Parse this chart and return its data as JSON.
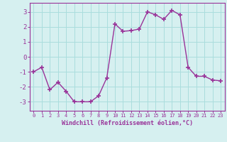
{
  "x": [
    0,
    1,
    2,
    3,
    4,
    5,
    6,
    7,
    8,
    9,
    10,
    11,
    12,
    13,
    14,
    15,
    16,
    17,
    18,
    19,
    20,
    21,
    22,
    23
  ],
  "y": [
    -1.0,
    -0.7,
    -2.2,
    -1.7,
    -2.3,
    -3.0,
    -3.0,
    -3.0,
    -2.6,
    -1.4,
    2.2,
    1.7,
    1.75,
    1.85,
    3.0,
    2.8,
    2.5,
    3.1,
    2.8,
    -0.7,
    -1.3,
    -1.3,
    -1.55,
    -1.6
  ],
  "xlabel": "Windchill (Refroidissement éolien,°C)",
  "xlim": [
    -0.5,
    23.5
  ],
  "ylim": [
    -3.6,
    3.6
  ],
  "yticks": [
    -3,
    -2,
    -1,
    0,
    1,
    2,
    3
  ],
  "xticks": [
    0,
    1,
    2,
    3,
    4,
    5,
    6,
    7,
    8,
    9,
    10,
    11,
    12,
    13,
    14,
    15,
    16,
    17,
    18,
    19,
    20,
    21,
    22,
    23
  ],
  "line_color": "#993399",
  "marker": "+",
  "bg_color": "#d6f0f0",
  "grid_color": "#aadddd",
  "axis_color": "#993399",
  "tick_color": "#993399",
  "label_color": "#993399"
}
